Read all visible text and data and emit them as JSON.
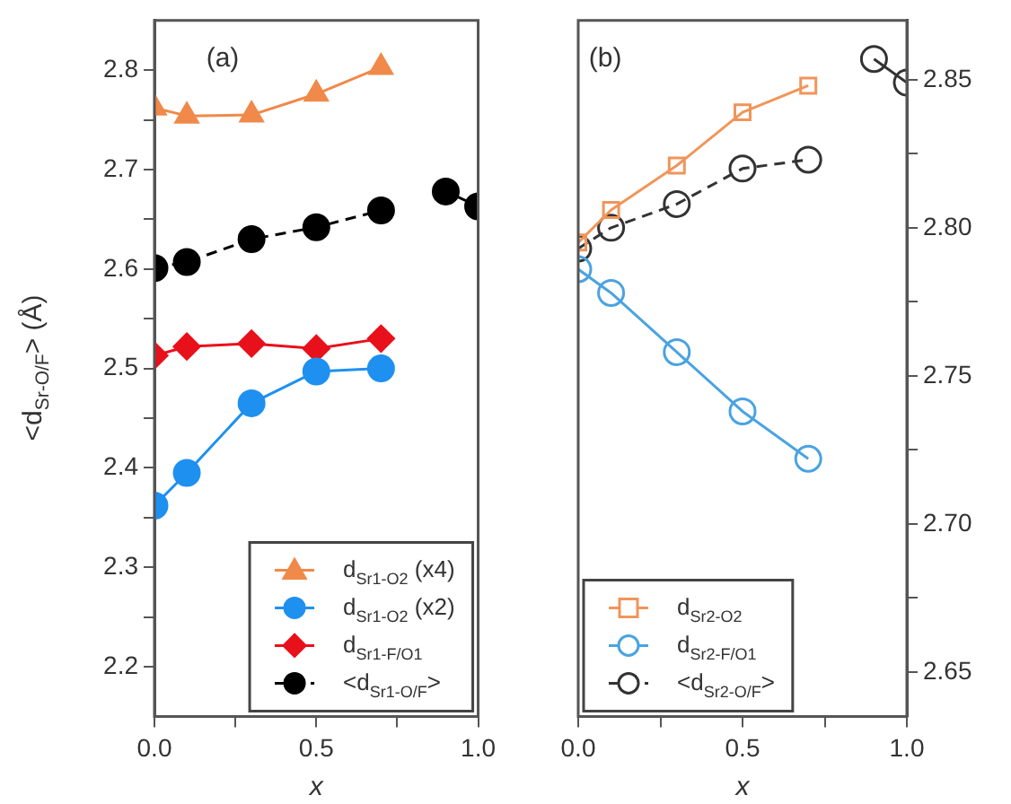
{
  "chart_data": [
    {
      "type": "line",
      "annotations": [
        "(a)"
      ],
      "xlabel": "x",
      "ylabel": "<d$_{Sr-O/F}$> (Å)",
      "grid": false,
      "legend": "bottom right",
      "xlim": [
        0,
        1
      ],
      "xticks": [
        {
          "value": 0,
          "label": "0.0"
        },
        {
          "value": 0.25,
          "label": null
        },
        {
          "value": 0.5,
          "label": "0.5"
        },
        {
          "value": 0.75,
          "label": null
        },
        {
          "value": 1,
          "label": "1.0"
        }
      ],
      "ylim": [
        2.15,
        2.85
      ],
      "yticks": [
        2.2,
        {
          "value": 2.25,
          "label": null
        },
        2.3,
        {
          "value": 2.35,
          "label": null
        },
        2.4,
        {
          "value": 2.45,
          "label": null
        },
        2.5,
        {
          "value": 2.55,
          "label": null
        },
        2.6,
        {
          "value": 2.65,
          "label": null
        },
        2.7,
        {
          "value": 2.75,
          "label": null
        },
        2.8
      ],
      "series": [
        {
          "name": "d$_{Sr1-O2}$ (x4)",
          "color": "#f0894a",
          "marker": "triangle",
          "line_style": "solid",
          "x": [
            0,
            0.1,
            0.3,
            0.5,
            0.7
          ],
          "values": [
            2.762,
            2.754,
            2.755,
            2.776,
            2.803
          ]
        },
        {
          "name": "d$_{Sr1-O2}$ (x2)",
          "color": "#1e90f0",
          "marker": "circle",
          "line_style": "solid",
          "x": [
            0,
            0.1,
            0.3,
            0.5,
            0.7
          ],
          "values": [
            2.362,
            2.395,
            2.465,
            2.497,
            2.5
          ]
        },
        {
          "name": "d$_{Sr1-F/O1}$",
          "color": "#e8101a",
          "marker": "diamond",
          "line_style": "solid",
          "x": [
            0,
            0.1,
            0.3,
            0.5,
            0.7
          ],
          "values": [
            2.513,
            2.522,
            2.525,
            2.52,
            2.53
          ]
        },
        {
          "name": "<d$_{Sr1-O/F}$>",
          "color": "#000000",
          "marker": "circle",
          "line_style": "dashed",
          "x": [
            0,
            0.1,
            0.3,
            0.5,
            0.7
          ],
          "values": [
            2.601,
            2.607,
            2.63,
            2.642,
            2.659
          ]
        },
        {
          "color": "#000000",
          "marker": "circle",
          "line_style": "solid",
          "x": [
            0.9,
            1.0
          ],
          "values": [
            2.678,
            2.663
          ]
        }
      ]
    },
    {
      "type": "line",
      "annotations": [
        "(b)"
      ],
      "xlabel": "x",
      "grid": false,
      "legend": "bottom left",
      "xlim": [
        0,
        1
      ],
      "xticks": [
        {
          "value": 0,
          "label": "0.0"
        },
        {
          "value": 0.25,
          "label": null
        },
        {
          "value": 0.5,
          "label": "0.5"
        },
        {
          "value": 0.75,
          "label": null
        },
        {
          "value": 1,
          "label": "1.0"
        }
      ],
      "y2lim": [
        2.635,
        2.87
      ],
      "y2ticks": [
        {
          "value": 2.65,
          "label": "2.65"
        },
        {
          "value": 2.675,
          "label": null
        },
        {
          "value": 2.7,
          "label": "2.70"
        },
        {
          "value": 2.725,
          "label": null
        },
        {
          "value": 2.75,
          "label": "2.75"
        },
        {
          "value": 2.775,
          "label": null
        },
        {
          "value": 2.8,
          "label": "2.80"
        },
        {
          "value": 2.825,
          "label": null
        },
        {
          "value": 2.85,
          "label": "2.85"
        }
      ],
      "series": [
        {
          "name": "d$_{Sr2-O2}$",
          "color": "#f0955a",
          "marker": "square",
          "line_style": "solid",
          "axis": "y2",
          "x": [
            0,
            0.1,
            0.3,
            0.5,
            0.7
          ],
          "values": [
            2.795,
            2.806,
            2.821,
            2.839,
            2.848
          ]
        },
        {
          "name": "d$_{Sr2-F/O1}$",
          "color": "#4aa3e0",
          "marker": "circle",
          "line_style": "solid",
          "axis": "y2",
          "x": [
            0,
            0.1,
            0.3,
            0.5,
            0.7
          ],
          "values": [
            2.786,
            2.778,
            2.758,
            2.738,
            2.722
          ]
        },
        {
          "name": "<d$_{Sr2-O/F}$>",
          "color": "#333333",
          "marker": "circle",
          "line_style": "dashed",
          "axis": "y2",
          "x": [
            0,
            0.1,
            0.3,
            0.5,
            0.7
          ],
          "values": [
            2.793,
            2.8,
            2.808,
            2.82,
            2.823
          ]
        },
        {
          "color": "#333333",
          "marker": "circle",
          "line_style": "solid",
          "axis": "y2",
          "x": [
            0.9,
            1.0
          ],
          "values": [
            2.857,
            2.849
          ]
        }
      ]
    }
  ]
}
